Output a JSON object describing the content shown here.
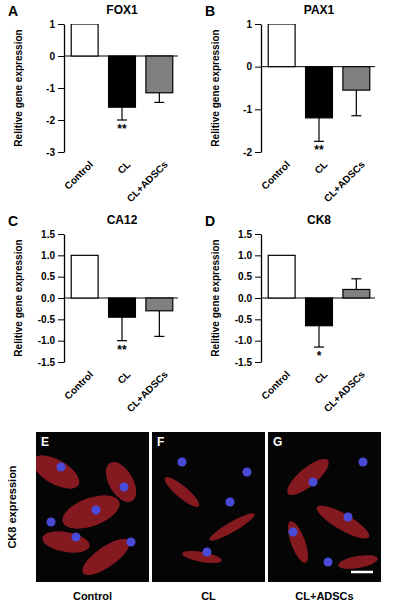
{
  "chart_data": [
    {
      "type": "bar",
      "panel_label": "A",
      "title": "FOX1",
      "y_label": "Relitive gene expression",
      "categories": [
        "Control",
        "CL",
        "CL+ADSCs"
      ],
      "values": [
        1,
        -1.6,
        -1.15
      ],
      "errors": [
        null,
        0.4,
        0.3
      ],
      "colors": [
        "#ffffff",
        "#000000",
        "#808080"
      ],
      "ylim": [
        -3,
        1
      ],
      "yticks": [
        -3,
        -2,
        -1,
        0,
        1
      ],
      "annotations": [
        {
          "text": "**",
          "category": "CL"
        }
      ]
    },
    {
      "type": "bar",
      "panel_label": "B",
      "title": "PAX1",
      "y_label": "Relitive gene expression",
      "categories": [
        "Control",
        "CL",
        "CL+ADSCs"
      ],
      "values": [
        1,
        -1.2,
        -0.55
      ],
      "errors": [
        null,
        0.55,
        0.6
      ],
      "colors": [
        "#ffffff",
        "#000000",
        "#808080"
      ],
      "ylim": [
        -2,
        1
      ],
      "yticks": [
        -2,
        -1,
        0,
        1
      ],
      "annotations": [
        {
          "text": "**",
          "category": "CL"
        }
      ]
    },
    {
      "type": "bar",
      "panel_label": "C",
      "title": "CA12",
      "y_label": "Relitive gene expression",
      "categories": [
        "Control",
        "CL",
        "CL+ADSCs"
      ],
      "values": [
        1,
        -0.45,
        -0.3
      ],
      "errors": [
        null,
        0.55,
        0.6
      ],
      "colors": [
        "#ffffff",
        "#000000",
        "#808080"
      ],
      "ylim": [
        -1.5,
        1.5
      ],
      "yticks": [
        -1.5,
        {
          "value": -1,
          "label": "-1.0"
        },
        -0.5,
        {
          "value": 0,
          "label": "0.0"
        },
        0.5,
        {
          "value": 1,
          "label": "1.0"
        },
        1.5
      ],
      "annotations": [
        {
          "text": "**",
          "category": "CL"
        }
      ]
    },
    {
      "type": "bar",
      "panel_label": "D",
      "title": "CK8",
      "y_label": "Relitive gene expression",
      "categories": [
        "Control",
        "CL",
        "CL+ADSCs"
      ],
      "values": [
        1,
        -0.65,
        0.2
      ],
      "errors": [
        null,
        0.5,
        0.25
      ],
      "colors": [
        "#ffffff",
        "#000000",
        "#808080"
      ],
      "ylim": [
        -1.5,
        1.5
      ],
      "yticks": [
        -1.5,
        {
          "value": -1,
          "label": "-1.0"
        },
        -0.5,
        {
          "value": 0,
          "label": "0.0"
        },
        0.5,
        {
          "value": 1,
          "label": "1.0"
        },
        1.5
      ],
      "annotations": [
        {
          "text": "*",
          "category": "CL"
        }
      ]
    }
  ],
  "image_panel": {
    "row_label": "CK8 expression",
    "panels": [
      {
        "letter": "E",
        "caption": "Control"
      },
      {
        "letter": "F",
        "caption": "CL"
      },
      {
        "letter": "G",
        "caption": "CL+ADSCs"
      }
    ]
  }
}
